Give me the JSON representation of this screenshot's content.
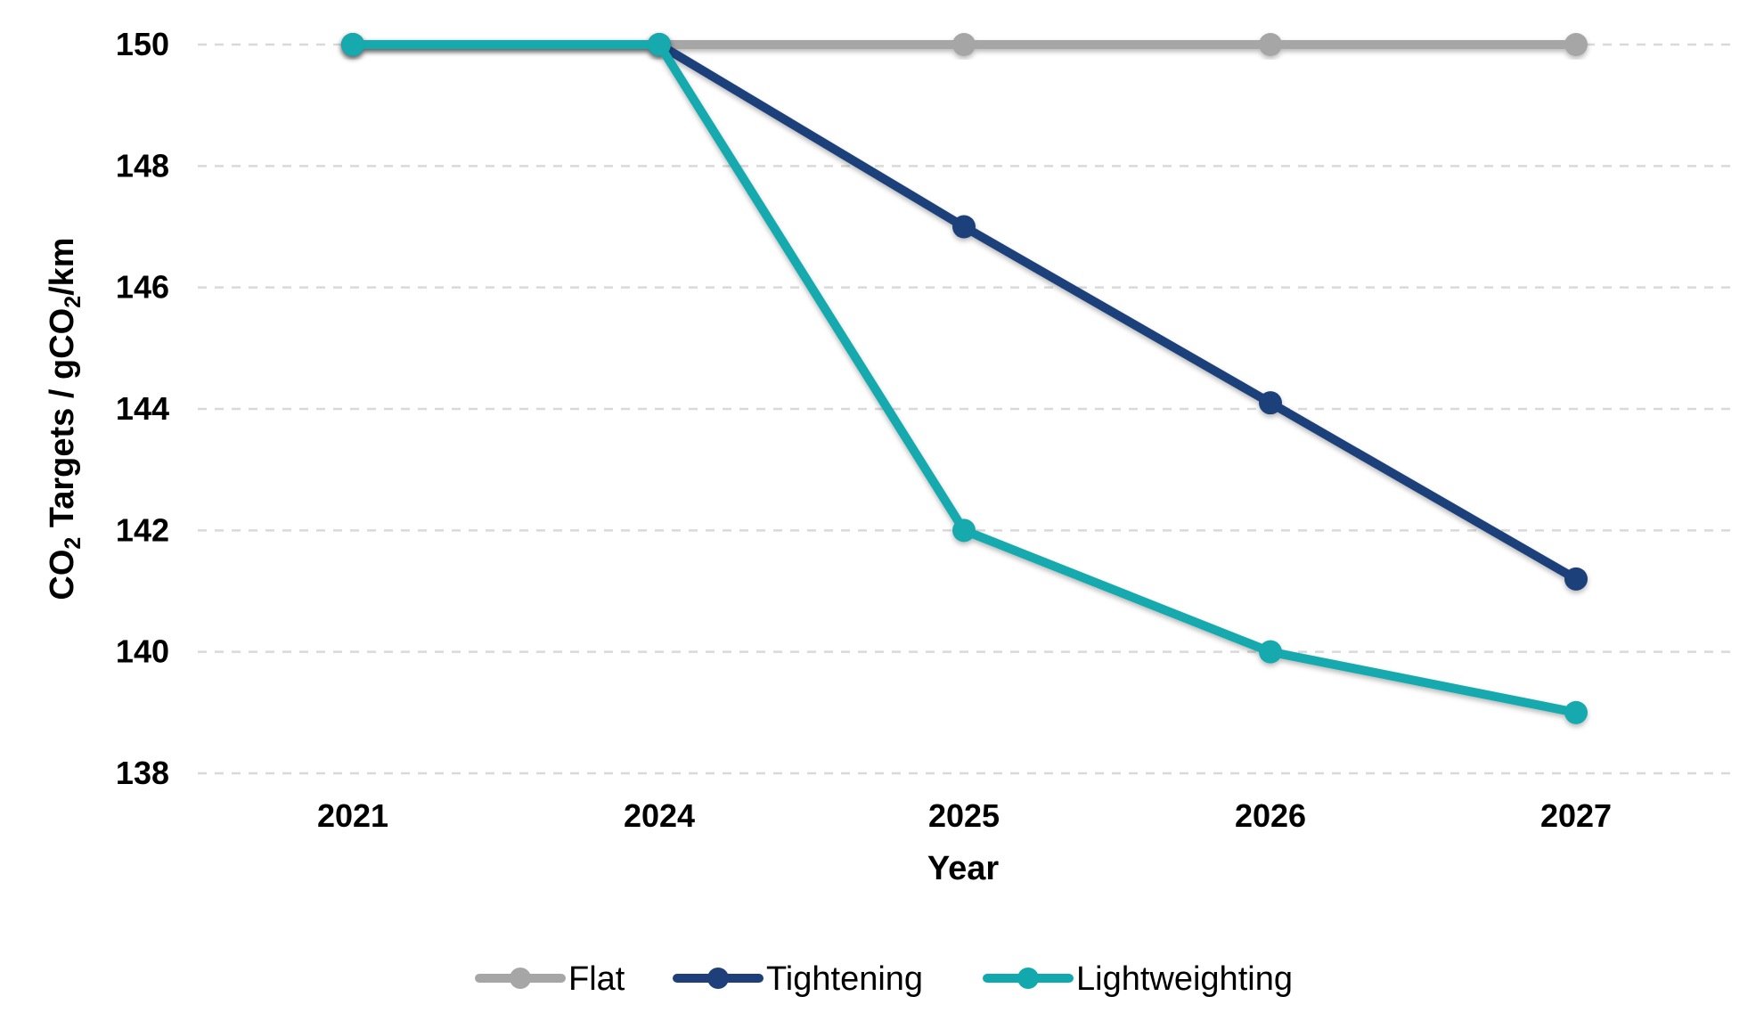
{
  "chart_data": {
    "type": "line",
    "categories": [
      "2021",
      "2024",
      "2025",
      "2026",
      "2027"
    ],
    "series": [
      {
        "name": "Flat",
        "values": [
          150,
          150,
          150,
          150,
          150
        ],
        "color": "#a6a6a6"
      },
      {
        "name": "Tightening",
        "values": [
          150,
          150,
          147,
          144.1,
          141.2
        ],
        "color": "#1f3f7a"
      },
      {
        "name": "Lightweighting",
        "values": [
          150,
          150,
          142,
          140,
          139
        ],
        "color": "#12a9ae"
      }
    ],
    "title": "",
    "xlabel": "Year",
    "ylabel": {
      "p1": "CO",
      "s1": "2",
      "p2": " Targets / gCO",
      "s2": "2",
      "p3": "/km"
    },
    "ylim": [
      138,
      150
    ],
    "yticks": [
      "138",
      "140",
      "142",
      "144",
      "146",
      "148",
      "150"
    ],
    "grid": true,
    "grid_style": "dashed",
    "legend_position": "bottom"
  }
}
